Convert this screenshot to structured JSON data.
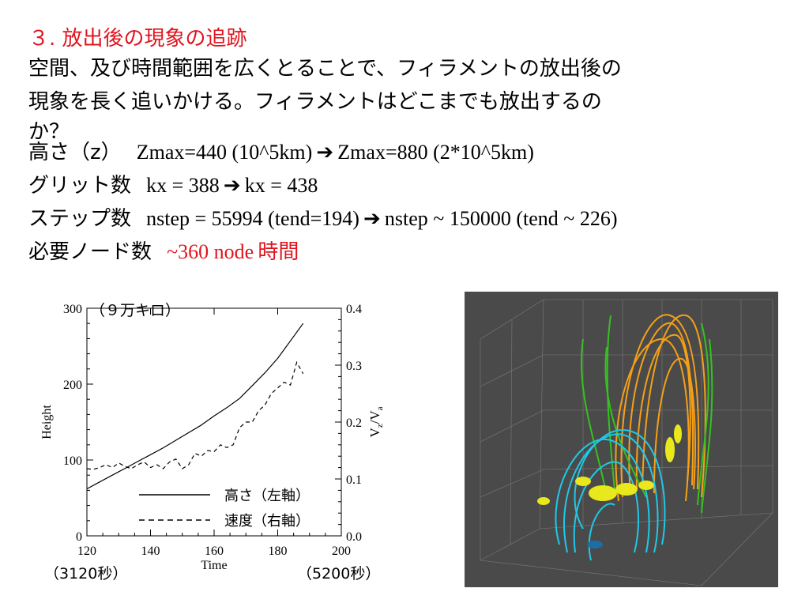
{
  "slide": {
    "title": "３. 放出後の現象の追跡",
    "body_line1": "空間、及び時間範囲を広くとることで、フィラメントの放出後の",
    "body_line2": "現象を長く追いかける。フィラメントはどこまでも放出するの",
    "body_line3": "か？",
    "rows": [
      {
        "label": "高さ（z）",
        "text": "Zmax=440 (10^5km)",
        "arrow": "➔",
        "text2": "Zmax=880 (2*10^5km)"
      },
      {
        "label": "グリット数",
        "text": "kx =  388",
        "arrow": "➔",
        "text2": "kx = 438"
      },
      {
        "label": "ステップ数",
        "text": "nstep = 55994 (tend=194)",
        "arrow": "➔",
        "text2": "nstep ~ 150000 (tend ~ 226)"
      },
      {
        "label": "必要ノード数",
        "text_red": "~360 node",
        "text_red2": "時間"
      }
    ],
    "captions": {
      "top_annotation": "（９万キロ）",
      "left_time": "（3120秒）",
      "right_time": "（5200秒）"
    }
  },
  "chart_data": {
    "type": "line",
    "xlabel": "Time",
    "ylabel": "Height",
    "y2label_main": "V",
    "y2label_sub1": "z",
    "y2label_mid": "/V",
    "y2label_sub2": "a",
    "xlim": [
      120,
      200
    ],
    "ylim": [
      0,
      300
    ],
    "y2lim": [
      0.0,
      0.4
    ],
    "x_ticks": [
      "120",
      "140",
      "160",
      "180",
      "200"
    ],
    "y_ticks": [
      "0",
      "100",
      "200",
      "300"
    ],
    "y2_ticks": [
      "0.0",
      "0.1",
      "0.2",
      "0.3",
      "0.4"
    ],
    "series": [
      {
        "name": "高さ（左軸）",
        "axis": "left",
        "style": "solid",
        "x": [
          120,
          124,
          128,
          132,
          136,
          140,
          144,
          148,
          152,
          156,
          160,
          164,
          168,
          172,
          176,
          180,
          184,
          188
        ],
        "values": [
          62,
          71,
          80,
          89,
          98,
          107,
          116,
          126,
          136,
          146,
          158,
          169,
          181,
          198,
          215,
          234,
          257,
          280
        ]
      },
      {
        "name": "速度（右軸）",
        "axis": "right",
        "style": "dashed",
        "x": [
          120,
          122,
          124,
          126,
          128,
          130,
          132,
          134,
          136,
          138,
          140,
          142,
          144,
          146,
          148,
          150,
          152,
          154,
          156,
          158,
          160,
          162,
          164,
          166,
          168,
          170,
          172,
          174,
          176,
          178,
          180,
          182,
          184,
          186,
          188
        ],
        "values": [
          0.118,
          0.117,
          0.12,
          0.125,
          0.12,
          0.128,
          0.122,
          0.118,
          0.125,
          0.13,
          0.12,
          0.125,
          0.118,
          0.13,
          0.135,
          0.118,
          0.125,
          0.145,
          0.14,
          0.15,
          0.148,
          0.16,
          0.155,
          0.16,
          0.19,
          0.2,
          0.2,
          0.22,
          0.23,
          0.25,
          0.26,
          0.27,
          0.265,
          0.305,
          0.285
        ]
      }
    ]
  },
  "colors": {
    "accent_red": "#e0141e",
    "sim_background": "#4a4a4a",
    "field_orange": "#f5a017",
    "field_green": "#35c21f",
    "field_cyan": "#20c8e8",
    "filament_yellow": "#e8e81c"
  }
}
